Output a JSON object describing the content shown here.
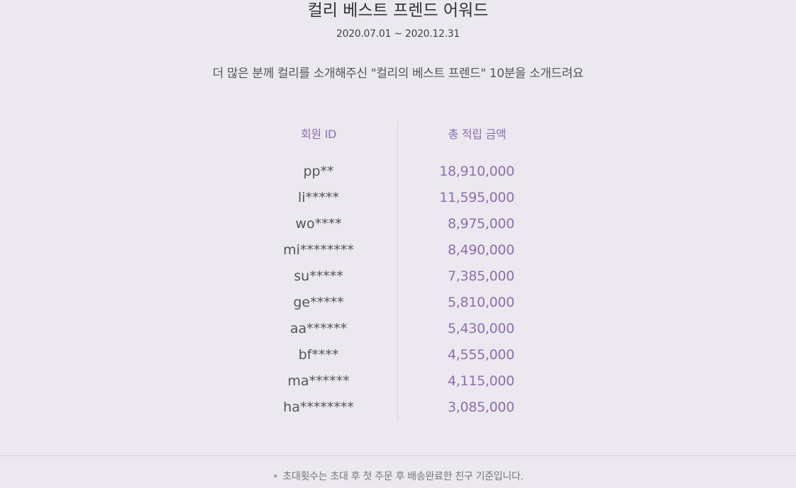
{
  "header": {
    "title": "컬리 베스트 프렌드 어워드",
    "period": "2020.07.01 ~ 2020.12.31",
    "description": "더 많은 분께 컬리를 소개해주신 \"컬리의 베스트 프렌드\" 10분을 소개드려요"
  },
  "table": {
    "columns": [
      "회원 ID",
      "총 적립 금액"
    ],
    "rows": [
      {
        "id": "pp**",
        "amount": "18,910,000"
      },
      {
        "id": "li*****",
        "amount": "11,595,000"
      },
      {
        "id": "wo****",
        "amount": "8,975,000"
      },
      {
        "id": "mi********",
        "amount": "8,490,000"
      },
      {
        "id": "su*****",
        "amount": "7,385,000"
      },
      {
        "id": "ge*****",
        "amount": "5,810,000"
      },
      {
        "id": "aa******",
        "amount": "5,430,000"
      },
      {
        "id": "bf****",
        "amount": "4,555,000"
      },
      {
        "id": "ma******",
        "amount": "4,115,000"
      },
      {
        "id": "ha********",
        "amount": "3,085,000"
      }
    ]
  },
  "footer": {
    "bullet": "•",
    "note": "초대횟수는 초대 후 첫 주문 후 배송완료한 친구 기준입니다."
  },
  "colors": {
    "background": "#ebe8ef",
    "accent": "#8d6fad",
    "text": "#333333"
  }
}
